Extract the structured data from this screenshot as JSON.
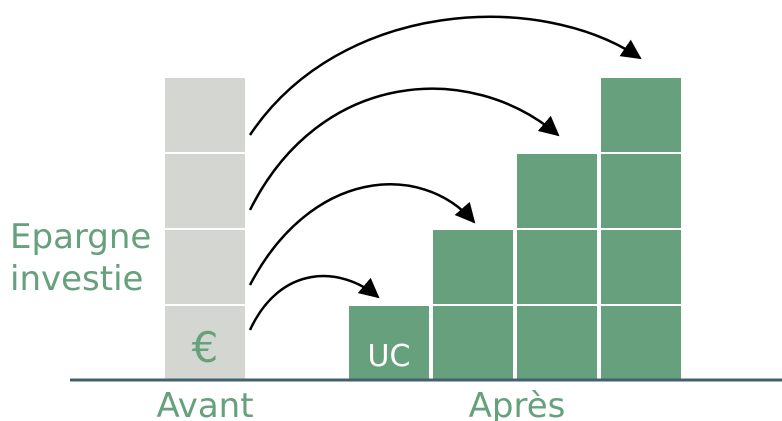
{
  "side_label": [
    "Epargne",
    "investie"
  ],
  "currency_symbol": "€",
  "unit_label": "UC",
  "before_label": "Avant",
  "after_label": "Après"
}
